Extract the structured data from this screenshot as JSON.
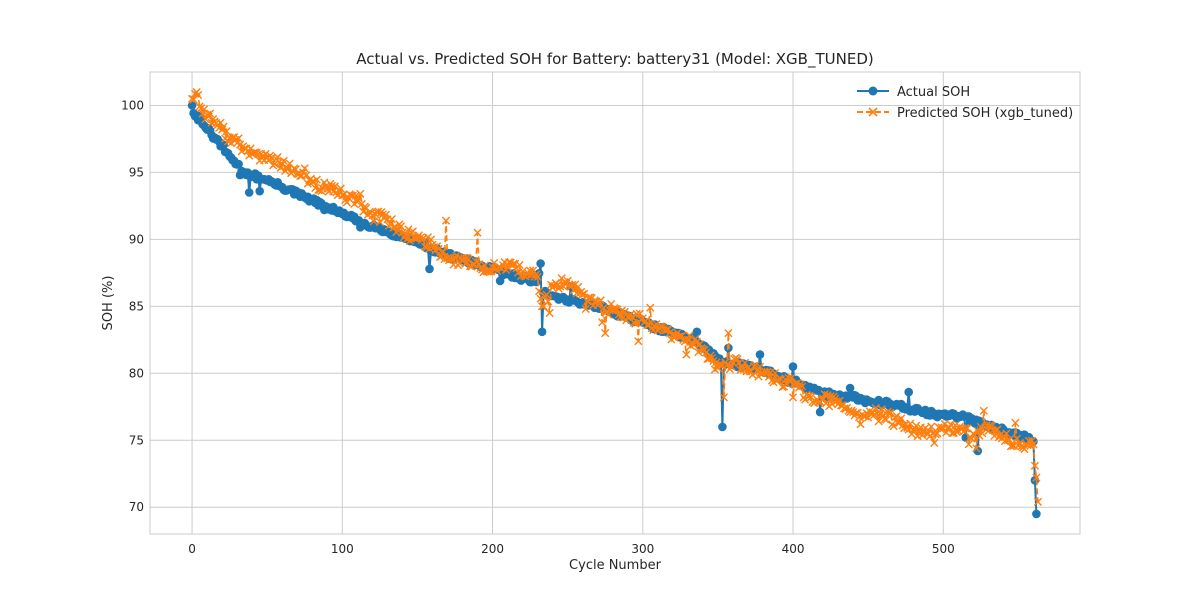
{
  "chart_data": {
    "type": "line",
    "title": "Actual vs. Predicted SOH for Battery: battery31 (Model: XGB_TUNED)",
    "xlabel": "Cycle Number",
    "ylabel": "SOH (%)",
    "xlim": [
      -28,
      591
    ],
    "ylim": [
      68.0,
      102.5
    ],
    "xticks": [
      0,
      100,
      200,
      300,
      400,
      500
    ],
    "yticks": [
      70,
      75,
      80,
      85,
      90,
      95,
      100
    ],
    "grid": true,
    "legend_position": "top-right",
    "colors": {
      "actual": "#1f77b4",
      "predicted": "#ff7f0e"
    },
    "series": [
      {
        "name": "Actual SOH",
        "style": "solid line with circle markers",
        "anchors": [
          [
            0,
            100.0
          ],
          [
            2,
            99.2
          ],
          [
            6,
            99.0
          ],
          [
            10,
            98.2
          ],
          [
            15,
            97.6
          ],
          [
            20,
            97.0
          ],
          [
            25,
            96.2
          ],
          [
            30,
            95.6
          ],
          [
            35,
            95.0
          ],
          [
            40,
            94.8
          ],
          [
            50,
            94.4
          ],
          [
            60,
            93.9
          ],
          [
            70,
            93.4
          ],
          [
            80,
            92.9
          ],
          [
            90,
            92.4
          ],
          [
            100,
            91.9
          ],
          [
            110,
            91.4
          ],
          [
            120,
            91.0
          ],
          [
            130,
            90.6
          ],
          [
            140,
            90.2
          ],
          [
            150,
            89.8
          ],
          [
            160,
            89.3
          ],
          [
            170,
            88.8
          ],
          [
            180,
            88.5
          ],
          [
            190,
            88.1
          ],
          [
            200,
            87.8
          ],
          [
            210,
            87.4
          ],
          [
            220,
            87.1
          ],
          [
            230,
            86.9
          ],
          [
            232,
            88.2
          ],
          [
            234,
            86.0
          ],
          [
            240,
            85.8
          ],
          [
            250,
            85.5
          ],
          [
            260,
            85.3
          ],
          [
            270,
            85.0
          ],
          [
            280,
            84.6
          ],
          [
            290,
            84.2
          ],
          [
            300,
            83.8
          ],
          [
            310,
            83.4
          ],
          [
            320,
            83.0
          ],
          [
            330,
            82.6
          ],
          [
            340,
            82.1
          ],
          [
            350,
            81.0
          ],
          [
            360,
            80.7
          ],
          [
            370,
            80.5
          ],
          [
            380,
            80.2
          ],
          [
            390,
            79.8
          ],
          [
            400,
            79.4
          ],
          [
            410,
            78.9
          ],
          [
            420,
            78.5
          ],
          [
            430,
            78.3
          ],
          [
            440,
            78.2
          ],
          [
            450,
            77.9
          ],
          [
            460,
            77.8
          ],
          [
            470,
            77.6
          ],
          [
            480,
            77.3
          ],
          [
            490,
            77.0
          ],
          [
            500,
            76.9
          ],
          [
            510,
            76.8
          ],
          [
            520,
            76.5
          ],
          [
            530,
            76.1
          ],
          [
            540,
            75.8
          ],
          [
            550,
            75.4
          ],
          [
            560,
            74.9
          ],
          [
            562,
            69.5
          ]
        ],
        "outliers": [
          [
            38,
            93.5
          ],
          [
            45,
            93.6
          ],
          [
            32,
            94.8
          ],
          [
            88,
            92.2
          ],
          [
            112,
            90.9
          ],
          [
            158,
            87.8
          ],
          [
            205,
            86.9
          ],
          [
            233,
            83.1
          ],
          [
            252,
            86.5
          ],
          [
            336,
            83.1
          ],
          [
            353,
            76.0
          ],
          [
            357,
            81.9
          ],
          [
            378,
            81.4
          ],
          [
            400,
            80.5
          ],
          [
            418,
            77.1
          ],
          [
            438,
            78.9
          ],
          [
            477,
            78.6
          ],
          [
            523,
            74.2
          ],
          [
            515,
            75.2
          ]
        ]
      },
      {
        "name": "Predicted SOH (xgb_tuned)",
        "style": "dashed line with x markers",
        "anchors": [
          [
            0,
            100.5
          ],
          [
            3,
            101.0
          ],
          [
            6,
            99.8
          ],
          [
            10,
            99.3
          ],
          [
            15,
            98.8
          ],
          [
            20,
            98.2
          ],
          [
            25,
            97.6
          ],
          [
            30,
            97.2
          ],
          [
            35,
            96.8
          ],
          [
            40,
            96.4
          ],
          [
            50,
            96.1
          ],
          [
            60,
            95.6
          ],
          [
            70,
            94.9
          ],
          [
            80,
            94.3
          ],
          [
            90,
            93.8
          ],
          [
            100,
            93.3
          ],
          [
            110,
            92.8
          ],
          [
            120,
            91.8
          ],
          [
            130,
            91.5
          ],
          [
            140,
            90.5
          ],
          [
            150,
            90.1
          ],
          [
            160,
            89.6
          ],
          [
            170,
            88.6
          ],
          [
            180,
            88.4
          ],
          [
            190,
            88.0
          ],
          [
            200,
            87.9
          ],
          [
            210,
            87.9
          ],
          [
            220,
            87.6
          ],
          [
            230,
            87.2
          ],
          [
            233,
            85.0
          ],
          [
            240,
            86.4
          ],
          [
            250,
            86.9
          ],
          [
            260,
            85.9
          ],
          [
            270,
            85.1
          ],
          [
            280,
            84.7
          ],
          [
            290,
            84.2
          ],
          [
            300,
            84.1
          ],
          [
            310,
            83.2
          ],
          [
            320,
            82.9
          ],
          [
            330,
            82.5
          ],
          [
            340,
            81.8
          ],
          [
            350,
            80.4
          ],
          [
            360,
            80.8
          ],
          [
            370,
            80.4
          ],
          [
            380,
            80.0
          ],
          [
            390,
            79.5
          ],
          [
            400,
            79.2
          ],
          [
            410,
            78.3
          ],
          [
            420,
            78.1
          ],
          [
            430,
            77.7
          ],
          [
            440,
            77.1
          ],
          [
            450,
            76.7
          ],
          [
            460,
            76.9
          ],
          [
            470,
            76.3
          ],
          [
            480,
            75.8
          ],
          [
            490,
            75.5
          ],
          [
            500,
            75.9
          ],
          [
            510,
            75.7
          ],
          [
            520,
            75.5
          ],
          [
            530,
            75.7
          ],
          [
            540,
            75.3
          ],
          [
            550,
            74.6
          ],
          [
            560,
            74.7
          ],
          [
            563,
            70.4
          ]
        ],
        "outliers": [
          [
            75,
            95.3
          ],
          [
            86,
            93.6
          ],
          [
            99,
            93.8
          ],
          [
            112,
            93.4
          ],
          [
            169,
            91.4
          ],
          [
            190,
            90.5
          ],
          [
            238,
            84.5
          ],
          [
            262,
            84.8
          ],
          [
            273,
            83.8
          ],
          [
            275,
            83.0
          ],
          [
            297,
            82.4
          ],
          [
            305,
            84.9
          ],
          [
            329,
            81.4
          ],
          [
            354,
            78.2
          ],
          [
            357,
            83.0
          ],
          [
            400,
            78.2
          ],
          [
            445,
            76.2
          ],
          [
            455,
            77.4
          ],
          [
            494,
            74.8
          ],
          [
            517,
            74.7
          ],
          [
            522,
            74.4
          ],
          [
            527,
            77.2
          ],
          [
            548,
            76.3
          ]
        ]
      }
    ]
  }
}
